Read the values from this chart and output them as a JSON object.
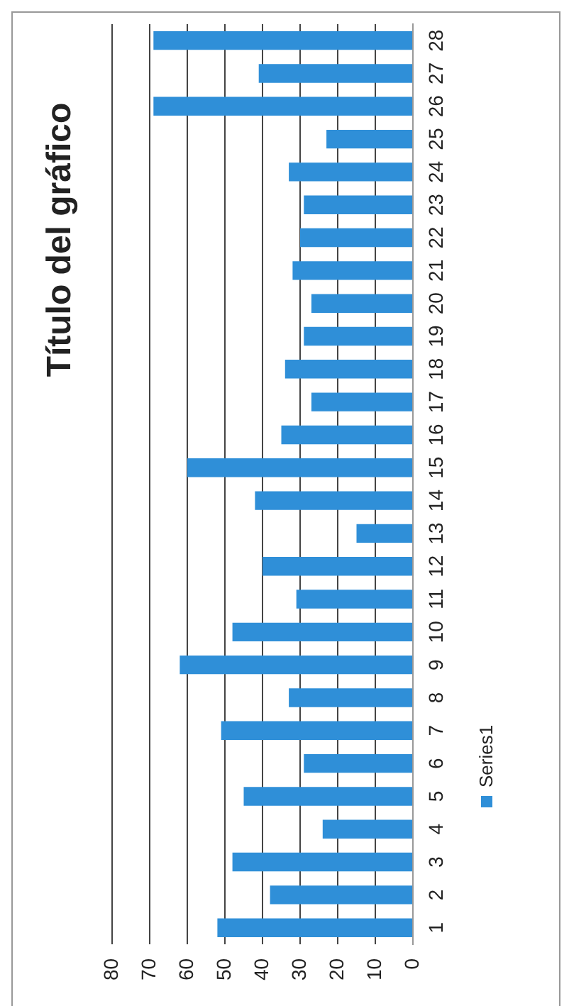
{
  "chart_data": {
    "type": "bar",
    "orientation": "horizontal",
    "title": "Título del gráfico",
    "categories": [
      "28",
      "27",
      "26",
      "25",
      "24",
      "23",
      "22",
      "21",
      "20",
      "19",
      "18",
      "17",
      "16",
      "15",
      "14",
      "13",
      "12",
      "11",
      "10",
      "9",
      "8",
      "7",
      "6",
      "5",
      "4",
      "3",
      "2",
      "1"
    ],
    "series": [
      {
        "name": "Series1",
        "color": "#2f8fd8",
        "values": [
          69,
          41,
          69,
          23,
          33,
          29,
          30,
          32,
          27,
          29,
          34,
          27,
          35,
          60,
          42,
          15,
          40,
          31,
          48,
          62,
          33,
          51,
          29,
          45,
          24,
          48,
          38,
          52
        ]
      }
    ],
    "xlim": [
      80,
      0
    ],
    "xticks": [
      80,
      70,
      60,
      50,
      40,
      30,
      20,
      10,
      0
    ],
    "grid": "x",
    "legend": "right"
  }
}
